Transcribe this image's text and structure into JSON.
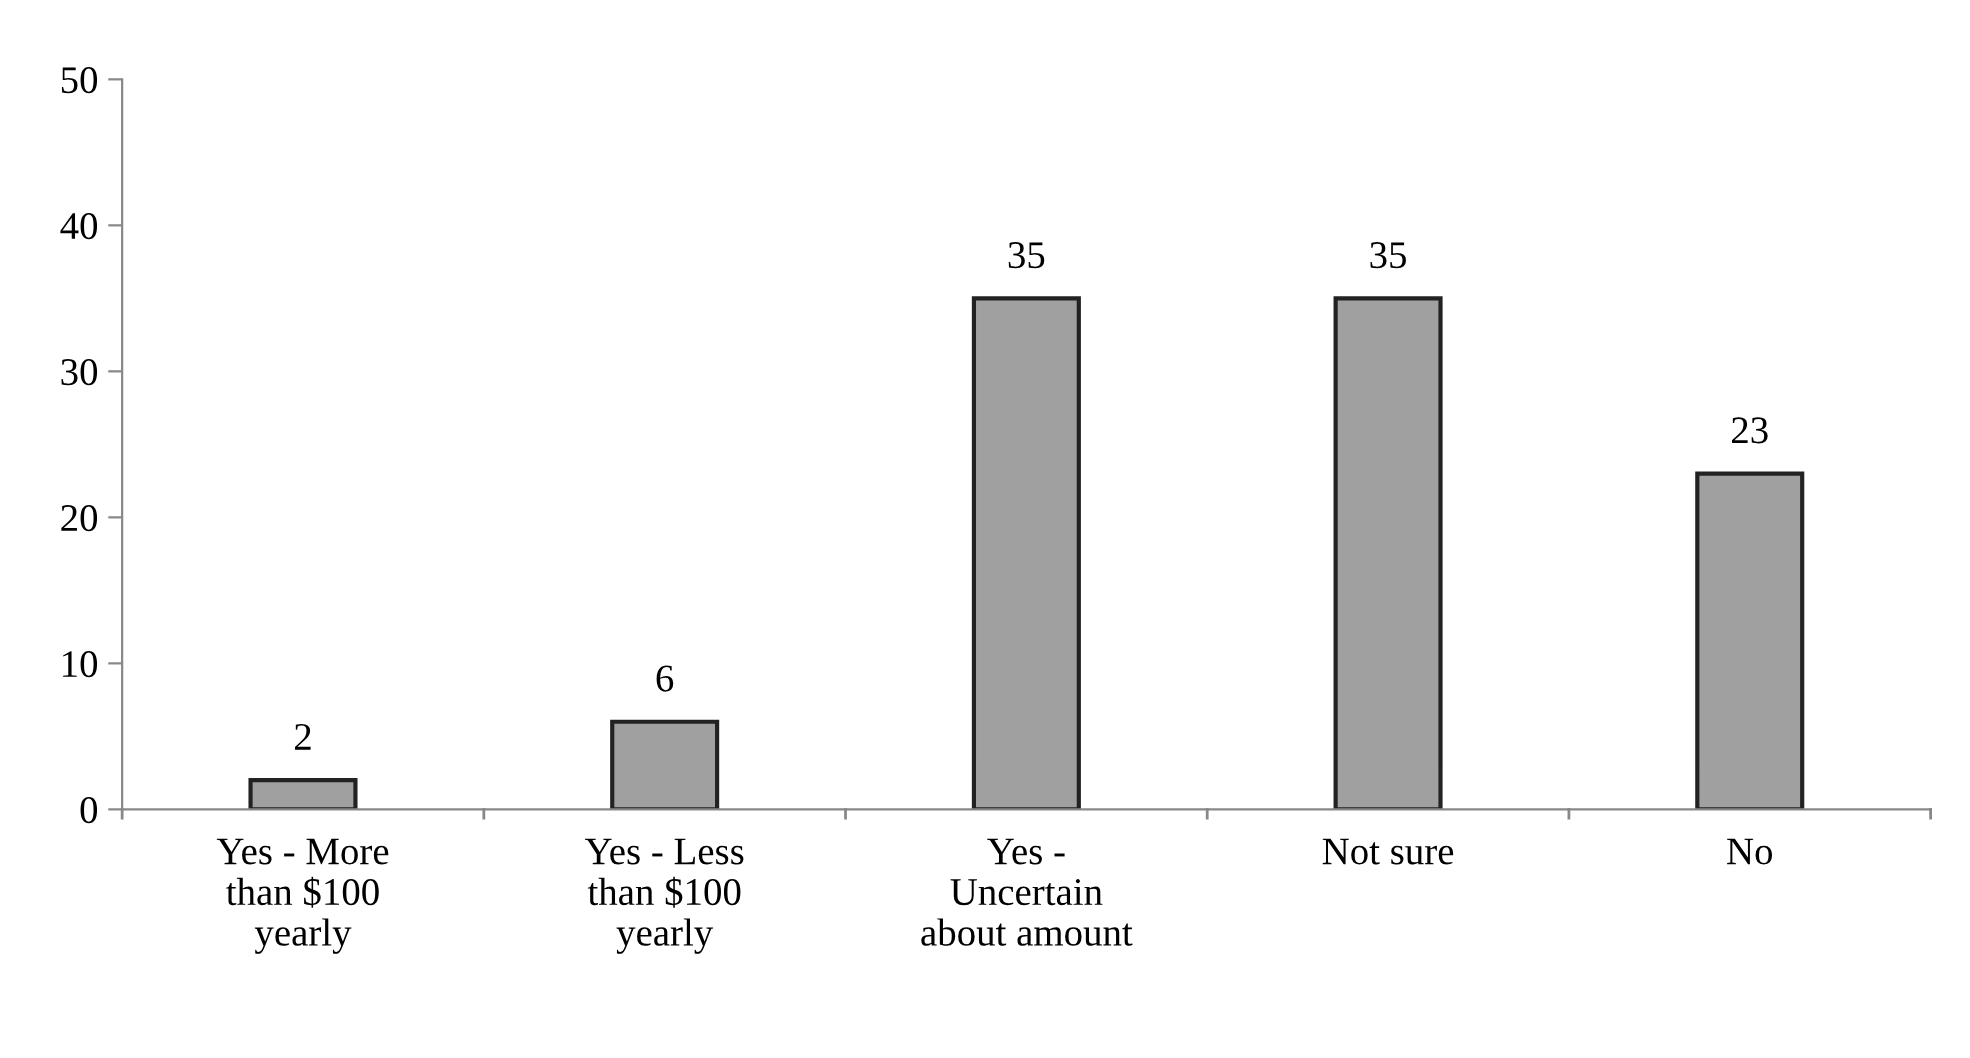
{
  "chart_data": {
    "type": "bar",
    "categories": [
      "Yes - More\nthan $100\nyearly",
      "Yes - Less\nthan $100\nyearly",
      "Yes -\nUncertain\nabout amount",
      "Not sure",
      "No"
    ],
    "values": [
      2,
      6,
      35,
      35,
      23
    ],
    "color": "#a0a0a0",
    "ylim": [
      0,
      50
    ],
    "yticks": [
      0,
      10,
      20,
      30,
      40,
      50
    ],
    "grid": false,
    "legend": false,
    "data_labels": true
  }
}
